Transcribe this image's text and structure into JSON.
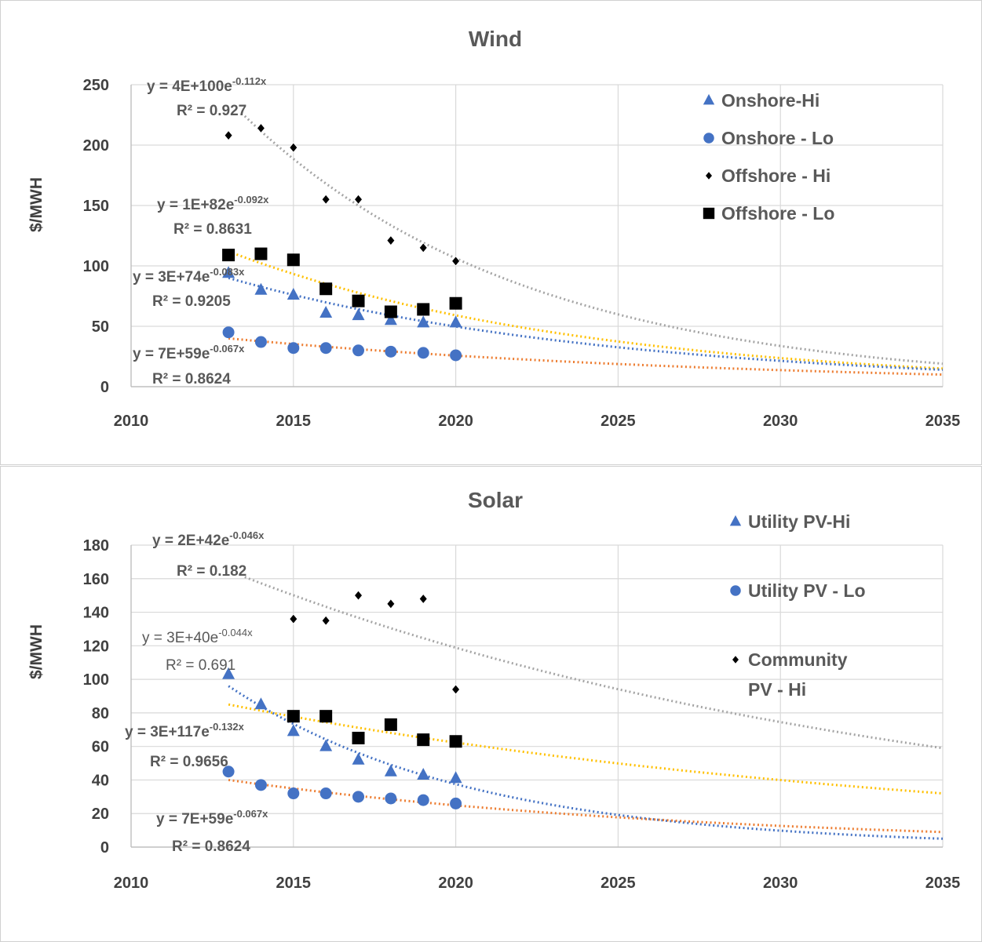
{
  "colors": {
    "onshore_hi": "#4472c4",
    "onshore_lo": "#4472c4",
    "offshore_hi": "#000000",
    "offshore_lo": "#000000",
    "trend_gray": "#a5a5a5",
    "trend_yellow": "#ffc000",
    "trend_blue": "#4472c4",
    "trend_orange": "#ed7d31"
  },
  "chart_data": [
    {
      "type": "scatter",
      "title": "Wind",
      "ylabel": "$/MWH",
      "xlabel": "",
      "xlim": [
        2010,
        2035
      ],
      "ylim": [
        0,
        250
      ],
      "x_ticks": [
        2010,
        2015,
        2020,
        2025,
        2030,
        2035
      ],
      "y_ticks": [
        0,
        50,
        100,
        150,
        200,
        250
      ],
      "grid": true,
      "legend_position": "top-right",
      "series": [
        {
          "name": "Onshore-Hi",
          "marker": "triangle",
          "x": [
            2013,
            2014,
            2015,
            2016,
            2017,
            2018,
            2019,
            2020
          ],
          "values": [
            94,
            80,
            76,
            61,
            59,
            55,
            53,
            53
          ]
        },
        {
          "name": "Onshore - Lo",
          "marker": "circle",
          "x": [
            2013,
            2014,
            2015,
            2016,
            2017,
            2018,
            2019,
            2020
          ],
          "values": [
            45,
            37,
            32,
            32,
            30,
            29,
            28,
            26
          ]
        },
        {
          "name": "Offshore - Hi",
          "marker": "diamond",
          "x": [
            2013,
            2014,
            2015,
            2016,
            2017,
            2018,
            2019,
            2020
          ],
          "values": [
            208,
            214,
            198,
            155,
            155,
            121,
            115,
            104
          ]
        },
        {
          "name": "Offshore - Lo",
          "marker": "square",
          "x": [
            2013,
            2014,
            2015,
            2016,
            2017,
            2018,
            2019,
            2020
          ],
          "values": [
            109,
            110,
            105,
            81,
            71,
            62,
            64,
            69
          ]
        }
      ],
      "trendlines": [
        {
          "series": "Offshore - Hi",
          "color": "gray",
          "x_range": [
            2013.5,
            2035
          ],
          "y_at_start": 224,
          "y_at_end": 19,
          "equation": "y = 4E+100e",
          "exponent": "-0.112x",
          "r2": "R² = 0.927",
          "bold": true
        },
        {
          "series": "Offshore - Lo",
          "color": "yellow",
          "x_range": [
            2013,
            2035
          ],
          "y_at_start": 112,
          "y_at_end": 15,
          "equation": "y = 1E+82e",
          "exponent": "-0.092x",
          "r2": "R² = 0.8631",
          "bold": true
        },
        {
          "series": "Onshore-Hi",
          "color": "blue",
          "x_range": [
            2013,
            2035
          ],
          "y_at_start": 90,
          "y_at_end": 14,
          "equation": "y = 3E+74e",
          "exponent": "-0.083x",
          "r2": "R² = 0.9205",
          "bold": true
        },
        {
          "series": "Onshore - Lo",
          "color": "orange",
          "x_range": [
            2013,
            2035
          ],
          "y_at_start": 40,
          "y_at_end": 10,
          "equation": "y = 7E+59e",
          "exponent": "-0.067x",
          "r2": "R² = 0.8624",
          "bold": true
        }
      ]
    },
    {
      "type": "scatter",
      "title": "Solar",
      "ylabel": "$/MWH",
      "xlabel": "",
      "xlim": [
        2010,
        2035
      ],
      "ylim": [
        0,
        180
      ],
      "x_ticks": [
        2010,
        2015,
        2020,
        2025,
        2030,
        2035
      ],
      "y_ticks": [
        0,
        20,
        40,
        60,
        80,
        100,
        120,
        140,
        160,
        180
      ],
      "grid": true,
      "legend_position": "right",
      "series": [
        {
          "name": "Utility PV-Hi",
          "marker": "triangle",
          "x": [
            2013,
            2014,
            2015,
            2016,
            2017,
            2018,
            2019,
            2020
          ],
          "values": [
            103,
            85,
            69,
            60,
            52,
            45,
            43,
            41
          ]
        },
        {
          "name": "Utility PV - Lo",
          "marker": "circle",
          "x": [
            2013,
            2014,
            2015,
            2016,
            2017,
            2018,
            2019,
            2020
          ],
          "values": [
            45,
            37,
            32,
            32,
            30,
            29,
            28,
            26
          ]
        },
        {
          "name": "Community PV - Hi",
          "marker": "diamond",
          "x": [
            2015,
            2016,
            2017,
            2018,
            2019,
            2020
          ],
          "values": [
            136,
            135,
            150,
            145,
            148,
            94
          ]
        },
        {
          "name": "",
          "marker": "square",
          "x": [
            2015,
            2016,
            2017,
            2018,
            2019,
            2020
          ],
          "values": [
            78,
            78,
            65,
            73,
            64,
            63
          ]
        }
      ],
      "trendlines": [
        {
          "series": "Community PV - Hi",
          "color": "gray",
          "x_range": [
            2013.5,
            2035
          ],
          "y_at_start": 161,
          "y_at_end": 59,
          "equation": "y = 2E+42e",
          "exponent": "-0.046x",
          "r2": "R² = 0.182",
          "bold": true
        },
        {
          "series": "",
          "color": "yellow",
          "x_range": [
            2013,
            2035
          ],
          "y_at_start": 85,
          "y_at_end": 32,
          "equation": "y = 3E+40e",
          "exponent": "-0.044x",
          "r2": "R² = 0.691",
          "bold": false
        },
        {
          "series": "Utility PV-Hi",
          "color": "blue",
          "x_range": [
            2013,
            2035
          ],
          "y_at_start": 96,
          "y_at_end": 5,
          "equation": "y = 3E+117e",
          "exponent": "-0.132x",
          "r2": "R² = 0.9656",
          "bold": true
        },
        {
          "series": "Utility PV - Lo",
          "color": "orange",
          "x_range": [
            2013,
            2035
          ],
          "y_at_start": 40,
          "y_at_end": 9,
          "equation": "y = 7E+59e",
          "exponent": "-0.067x",
          "r2": "R² = 0.8624",
          "bold": true
        }
      ]
    }
  ]
}
